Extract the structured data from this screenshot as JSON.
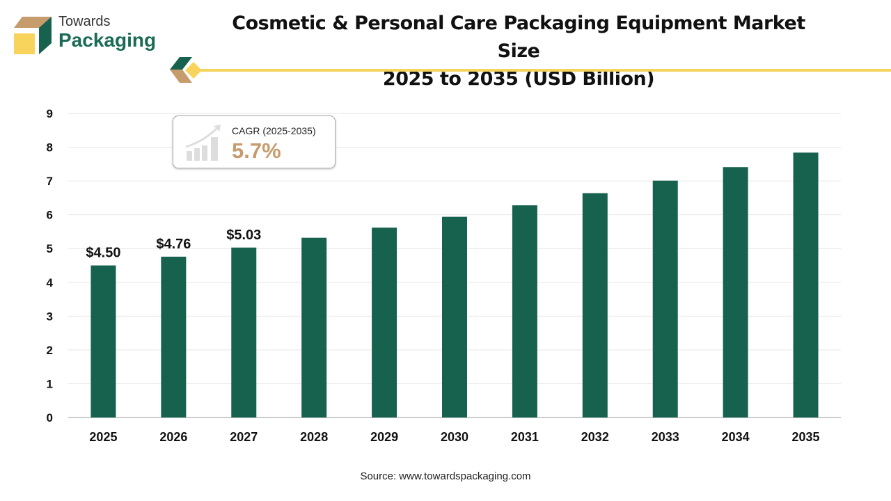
{
  "logo": {
    "line1": "Towards",
    "line2": "Packaging"
  },
  "title_line1": "Cosmetic & Personal Care Packaging Equipment Market Size",
  "title_line2": "2025 to 2035 (USD Billion)",
  "cagr": {
    "label": "CAGR (2025-2035)",
    "value": "5.7%"
  },
  "source": "Source: www.towardspackaging.com",
  "colors": {
    "bar": "#17624f",
    "accent": "#f5d45e",
    "cagr": "#c69c6d"
  },
  "chart_data": {
    "type": "bar",
    "categories": [
      "2025",
      "2026",
      "2027",
      "2028",
      "2029",
      "2030",
      "2031",
      "2032",
      "2033",
      "2034",
      "2035"
    ],
    "values": [
      4.5,
      4.76,
      5.03,
      5.32,
      5.62,
      5.94,
      6.28,
      6.64,
      7.01,
      7.41,
      7.84
    ],
    "data_labels": [
      "$4.50",
      "$4.76",
      "$5.03",
      "",
      "",
      "",
      "",
      "",
      "",
      "",
      ""
    ],
    "ylim": [
      0,
      9
    ],
    "yticks": [
      0,
      1,
      2,
      3,
      4,
      5,
      6,
      7,
      8,
      9
    ],
    "grid": true,
    "xlabel": "",
    "ylabel": ""
  }
}
